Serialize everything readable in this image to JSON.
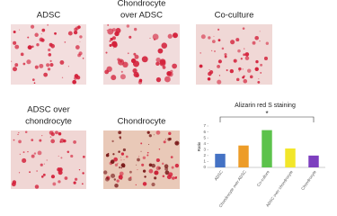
{
  "panels": [
    {
      "label": [
        "ADSC"
      ]
    },
    {
      "label": [
        "Chondrocyte",
        "over ADSC"
      ]
    },
    {
      "label": [
        "Co-culture"
      ]
    },
    {
      "label": [
        "ADSC over",
        "chondrocyte"
      ]
    },
    {
      "label": [
        "Chondrocyte"
      ]
    }
  ],
  "chart_data": {
    "type": "bar",
    "title": "Alizarin red S staining",
    "y_label": "Ratio",
    "categories": [
      "ADSC",
      "Chondrocyte over ADSC",
      "Co-culture",
      "ADSC over chondrocyte",
      "Chondrocyte"
    ],
    "values": [
      2.3,
      3.7,
      6.3,
      3.2,
      2.0
    ],
    "colors": [
      "#4472c4",
      "#ed9c28",
      "#5cc24c",
      "#f2e62a",
      "#7d3fbf"
    ],
    "ylim": [
      0,
      7
    ],
    "yticks": [
      0,
      1,
      2,
      3,
      4,
      5,
      6,
      7
    ],
    "grid": false,
    "annotation": "*"
  }
}
